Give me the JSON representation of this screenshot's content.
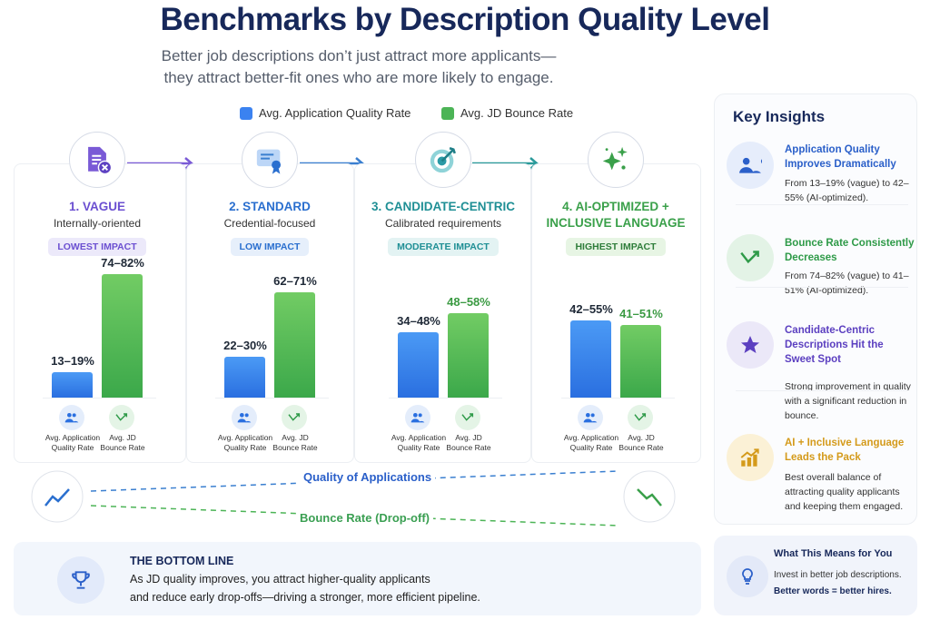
{
  "title": "Benchmarks by Description Quality Level",
  "subtitle": [
    "Better job descriptions don’t just attract more applicants—",
    "they attract better-fit ones who are more likely to engage."
  ],
  "colors": {
    "quality": "#3b82f0",
    "bounce": "#4cb456",
    "navy": "#17285a"
  },
  "chart_data": {
    "type": "bar",
    "categories": [
      "1. VAGUE",
      "2. STANDARD",
      "3. CANDIDATE-CENTRIC",
      "4. AI-OPTIMIZED + INCLUSIVE LANGUAGE"
    ],
    "legend": [
      "Avg. Application Quality Rate",
      "Avg. JD Bounce Rate"
    ],
    "legend_placement": "top",
    "series": [
      {
        "name": "Avg. Application Quality Rate",
        "ranges": [
          [
            13,
            19
          ],
          [
            22,
            30
          ],
          [
            34,
            48
          ],
          [
            42,
            55
          ]
        ],
        "labels": [
          "13–19%",
          "22–30%",
          "34–48%",
          "42–55%"
        ]
      },
      {
        "name": "Avg. JD Bounce Rate",
        "ranges": [
          [
            74,
            82
          ],
          [
            62,
            71
          ],
          [
            48,
            58
          ],
          [
            41,
            51
          ]
        ],
        "labels": [
          "74–82%",
          "62–71%",
          "48–58%",
          "41–51%"
        ]
      }
    ],
    "axis_labels": [
      "Avg. Application",
      "Quality Rate",
      "Avg. JD",
      "Bounce Rate"
    ],
    "grid": false
  },
  "stages": [
    {
      "title": "1. VAGUE",
      "subtitle": "Internally-oriented",
      "badge": "LOWEST IMPACT",
      "icon": "document-x-icon",
      "color": "#6b4fd1"
    },
    {
      "title": "2. STANDARD",
      "subtitle": "Credential-focused",
      "badge": "LOW IMPACT",
      "icon": "certificate-icon",
      "color": "#2a6fcf"
    },
    {
      "title": "3. CANDIDATE-CENTRIC",
      "subtitle": "Calibrated requirements",
      "badge": "MODERATE IMPACT",
      "icon": "target-icon",
      "color": "#1f8f95"
    },
    {
      "title": "4. AI-OPTIMIZED +",
      "title2": "INCLUSIVE LANGUAGE",
      "badge": "HIGHEST IMPACT",
      "icon": "sparkles-icon",
      "color": "#3aa04a"
    }
  ],
  "trends": {
    "quality": "Quality of Applications",
    "bounce": "Bounce Rate (Drop-off)"
  },
  "bottom_line": {
    "title": "THE BOTTOM LINE",
    "line1": "As JD quality improves, you attract higher-quality applicants",
    "line2": "and reduce early drop-offs—driving a stronger, more efficient pipeline."
  },
  "insights": {
    "title": "Key Insights",
    "items": [
      {
        "title": "Application Quality Improves Dramatically",
        "desc": "From 13–19% (vague) to 42–55% (AI-optimized).",
        "icon": "users-icon",
        "color": "#2a5fc9"
      },
      {
        "title": "Bounce Rate Consistently Decreases",
        "desc": "From 74–82% (vague) to 41–51% (AI-optimized).",
        "icon": "bounce-arrow-icon",
        "color": "#2e9a48"
      },
      {
        "title": "Candidate-Centric Descriptions Hit the Sweet Spot",
        "desc": "Strong improvement in quality with a significant reduction in bounce.",
        "icon": "star-icon",
        "color": "#5b3fc0"
      },
      {
        "title": "AI + Inclusive Language Leads the Pack",
        "desc": "Best overall balance of attracting quality applicants and keeping them engaged.",
        "icon": "chart-up-icon",
        "color": "#d49a1a"
      }
    ]
  },
  "means": {
    "title": "What This Means for You",
    "line1": "Invest in better job descriptions.",
    "line2": "Better words = better hires."
  }
}
